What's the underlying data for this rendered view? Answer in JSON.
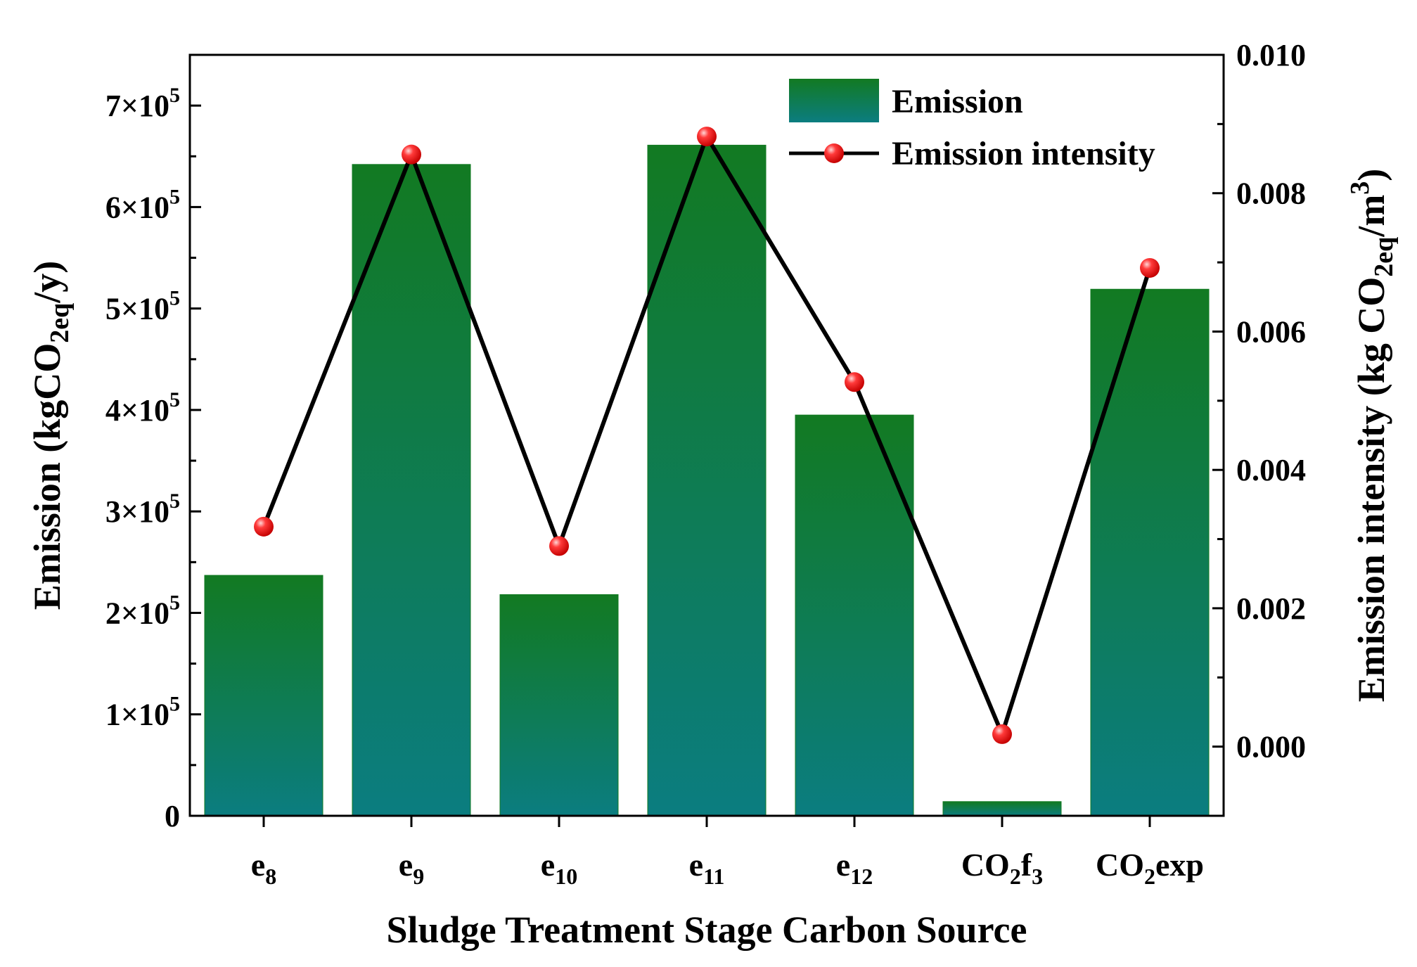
{
  "chart_data": {
    "type": "bar+line",
    "xlabel": "Sludge Treatment Stage Carbon Source",
    "categories": [
      {
        "base": "e",
        "sub": "8",
        "tail": ""
      },
      {
        "base": "e",
        "sub": "9",
        "tail": ""
      },
      {
        "base": "e",
        "sub": "10",
        "tail": ""
      },
      {
        "base": "e",
        "sub": "11",
        "tail": ""
      },
      {
        "base": "e",
        "sub": "12",
        "tail": ""
      },
      {
        "base": "CO",
        "sub": "2",
        "tail": "f",
        "sub2": "3"
      },
      {
        "base": "CO",
        "sub": "2",
        "tail": "exp"
      }
    ],
    "y_left": {
      "label_parts": [
        "Emission (kgCO",
        "2eq",
        "/y)"
      ],
      "ylim": [
        0,
        750000
      ],
      "ticks": [
        0,
        100000,
        200000,
        300000,
        400000,
        500000,
        600000,
        700000
      ],
      "tick_labels": [
        {
          "text": "0"
        },
        {
          "mant": "1×10",
          "exp": "5"
        },
        {
          "mant": "2×10",
          "exp": "5"
        },
        {
          "mant": "3×10",
          "exp": "5"
        },
        {
          "mant": "4×10",
          "exp": "5"
        },
        {
          "mant": "5×10",
          "exp": "5"
        },
        {
          "mant": "6×10",
          "exp": "5"
        },
        {
          "mant": "7×10",
          "exp": "5"
        }
      ]
    },
    "y_right": {
      "label_parts": [
        "Emission intensity (kg CO",
        "2eq",
        "/m",
        "3",
        ")"
      ],
      "ylim": [
        -0.001,
        0.01
      ],
      "ticks": [
        0.0,
        0.002,
        0.004,
        0.006,
        0.008,
        0.01
      ],
      "tick_labels": [
        "0.000",
        "0.002",
        "0.004",
        "0.006",
        "0.008",
        "0.010"
      ]
    },
    "series": [
      {
        "name": "Emission",
        "type": "bar",
        "axis": "left",
        "values": [
          237000,
          642000,
          218000,
          661000,
          395000,
          14000,
          519000
        ]
      },
      {
        "name": "Emission intensity",
        "type": "line",
        "axis": "right",
        "values": [
          0.00318,
          0.00856,
          0.0029,
          0.00882,
          0.00527,
          0.00018,
          0.00692
        ]
      }
    ],
    "legend": {
      "position": "top-right"
    },
    "colors": {
      "bar_top": "#127a22",
      "bar_bottom": "#0b7d80",
      "line": "#000000",
      "marker": "#ee1111",
      "marker_highlight": "#ffd6d6"
    }
  }
}
